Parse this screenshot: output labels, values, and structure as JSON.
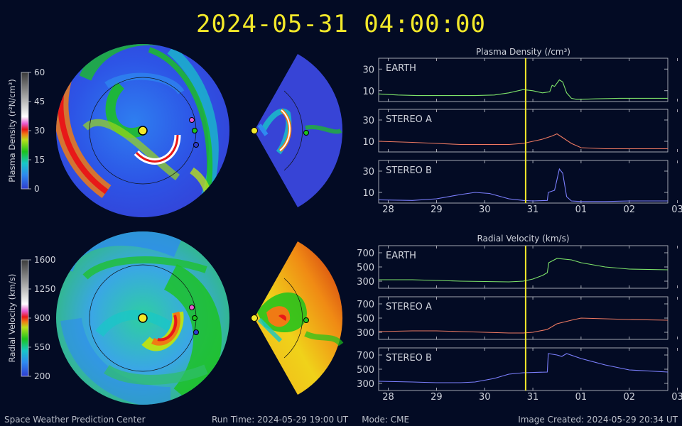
{
  "header": {
    "timestamp": "2024-05-31 04:00:00"
  },
  "footer": {
    "org": "Space Weather Prediction Center",
    "run_time": "Run Time: 2024-05-29 19:00 UT",
    "mode": "Mode: CME",
    "image_created": "Image Created: 2024-05-29 20:34 UT"
  },
  "colorbars": {
    "density": {
      "label": "Plasma Density (r²N/cm³)",
      "ticks": [
        "60",
        "45",
        "30",
        "15",
        "0"
      ]
    },
    "velocity": {
      "label": "Radial Velocity (km/s)",
      "ticks": [
        "1600",
        "1250",
        "900",
        "550",
        "200"
      ]
    }
  },
  "colors": {
    "earth": "#7ee46a",
    "stereo_a": "#ee7a62",
    "stereo_b": "#7c80ff",
    "marker": "#f3e92a",
    "background": "#030b24"
  },
  "chart_data": [
    {
      "type": "line",
      "title": "Plasma Density (/cm³)",
      "x_ticks": [
        "28",
        "29",
        "30",
        "31",
        "01",
        "02",
        "03"
      ],
      "current_time_x": 30.85,
      "panels": [
        {
          "name": "EARTH",
          "color": "#7ee46a",
          "ylim": [
            0,
            40
          ],
          "yticks": [
            "30",
            "10"
          ],
          "x": [
            27.8,
            28.2,
            28.6,
            29.0,
            29.4,
            29.8,
            30.2,
            30.5,
            30.8,
            31.0,
            31.2,
            31.35,
            31.4,
            31.45,
            31.55,
            31.62,
            31.7,
            31.8,
            31.9,
            32.0,
            32.3,
            32.8,
            33.3,
            33.8
          ],
          "values": [
            7,
            6,
            5.5,
            5.5,
            5.5,
            5.5,
            6,
            8,
            11,
            10,
            8,
            9,
            15,
            14,
            20,
            18,
            8,
            3,
            2,
            2,
            2.5,
            3,
            3,
            3
          ]
        },
        {
          "name": "STEREO A",
          "color": "#ee7a62",
          "ylim": [
            0,
            40
          ],
          "yticks": [
            "30",
            "10"
          ],
          "x": [
            27.8,
            28.5,
            29.0,
            29.5,
            30.0,
            30.5,
            30.8,
            31.0,
            31.2,
            31.4,
            31.5,
            31.6,
            31.8,
            32.0,
            32.5,
            33.0,
            33.8
          ],
          "values": [
            10,
            9,
            8,
            7,
            7,
            7,
            8,
            10,
            12,
            15,
            17,
            14,
            8,
            4,
            3,
            3,
            3
          ]
        },
        {
          "name": "STEREO B",
          "color": "#7c80ff",
          "ylim": [
            0,
            40
          ],
          "yticks": [
            "30",
            "10"
          ],
          "x": [
            27.8,
            28.5,
            29.0,
            29.5,
            29.8,
            30.1,
            30.5,
            30.8,
            31.0,
            31.3,
            31.32,
            31.45,
            31.55,
            31.62,
            31.7,
            31.8,
            32.0,
            32.5,
            33.0,
            33.8
          ],
          "values": [
            3,
            2.5,
            4,
            8,
            10,
            9,
            4,
            2.5,
            2,
            2.5,
            10,
            12,
            32,
            28,
            6,
            2,
            1.5,
            1.5,
            2,
            2
          ]
        }
      ]
    },
    {
      "type": "line",
      "title": "Radial Velocity (km/s)",
      "x_ticks": [
        "28",
        "29",
        "30",
        "31",
        "01",
        "02",
        "03"
      ],
      "current_time_x": 30.85,
      "panels": [
        {
          "name": "EARTH",
          "color": "#7ee46a",
          "ylim": [
            200,
            800
          ],
          "yticks": [
            "700",
            "500",
            "300"
          ],
          "x": [
            27.8,
            28.5,
            29.0,
            29.5,
            30.0,
            30.5,
            30.8,
            31.0,
            31.2,
            31.3,
            31.33,
            31.5,
            31.8,
            32.0,
            32.5,
            33.0,
            33.8
          ],
          "values": [
            320,
            320,
            310,
            300,
            295,
            290,
            300,
            330,
            380,
            420,
            560,
            620,
            600,
            560,
            500,
            470,
            460
          ]
        },
        {
          "name": "STEREO A",
          "color": "#ee7a62",
          "ylim": [
            200,
            800
          ],
          "yticks": [
            "700",
            "500",
            "300"
          ],
          "x": [
            27.8,
            28.5,
            29.0,
            29.5,
            30.0,
            30.5,
            30.8,
            31.0,
            31.3,
            31.5,
            31.8,
            32.0,
            32.5,
            33.0,
            33.8
          ],
          "values": [
            310,
            320,
            320,
            310,
            300,
            290,
            290,
            300,
            340,
            420,
            470,
            500,
            490,
            480,
            470
          ]
        },
        {
          "name": "STEREO B",
          "color": "#7c80ff",
          "ylim": [
            200,
            800
          ],
          "yticks": [
            "700",
            "500",
            "300"
          ],
          "x": [
            27.8,
            28.5,
            29.0,
            29.5,
            29.8,
            30.2,
            30.5,
            30.8,
            31.3,
            31.32,
            31.5,
            31.6,
            31.7,
            32.0,
            32.5,
            33.0,
            33.8
          ],
          "values": [
            330,
            320,
            310,
            310,
            320,
            370,
            430,
            450,
            460,
            720,
            700,
            680,
            720,
            650,
            560,
            490,
            460
          ]
        }
      ]
    }
  ]
}
